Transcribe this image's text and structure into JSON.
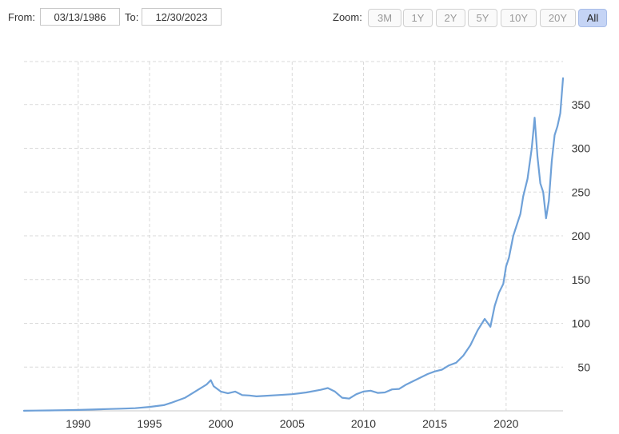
{
  "range": {
    "from_label": "From:",
    "from_value": "03/13/1986",
    "to_label": "To:",
    "to_value": "12/30/2023"
  },
  "zoom": {
    "label": "Zoom:",
    "buttons": [
      {
        "label": "3M",
        "active": false
      },
      {
        "label": "1Y",
        "active": false
      },
      {
        "label": "2Y",
        "active": false
      },
      {
        "label": "5Y",
        "active": false
      },
      {
        "label": "10Y",
        "active": false
      },
      {
        "label": "20Y",
        "active": false
      },
      {
        "label": "All",
        "active": true
      }
    ]
  },
  "colors": {
    "line": "#6fa1d8",
    "grid": "#d9d9d9",
    "zoom_active": "#c5d4f5"
  },
  "chart_data": {
    "type": "line",
    "title": "",
    "xlabel": "",
    "ylabel": "",
    "x_ticks": [
      "1990",
      "1995",
      "2000",
      "2005",
      "2010",
      "2015",
      "2020"
    ],
    "y_ticks": [
      50,
      100,
      150,
      200,
      250,
      300,
      350
    ],
    "xlim": [
      1986.2,
      2023.99
    ],
    "ylim": [
      0,
      385
    ],
    "y_axis_side": "right",
    "grid": true,
    "grid_style": "dashed",
    "series": [
      {
        "x": [
          1986.2,
          1987.0,
          1988.0,
          1989.0,
          1990.0,
          1991.0,
          1992.0,
          1993.0,
          1994.0,
          1995.0,
          1996.0,
          1996.5,
          1997.0,
          1997.5,
          1998.0,
          1998.5,
          1999.0,
          1999.3,
          1999.5,
          2000.0,
          2000.5,
          2001.0,
          2001.5,
          2002.0,
          2002.5,
          2003.0,
          2004.0,
          2005.0,
          2005.5,
          2006.0,
          2007.0,
          2007.5,
          2008.0,
          2008.5,
          2009.0,
          2009.5,
          2010.0,
          2010.5,
          2011.0,
          2011.5,
          2012.0,
          2012.5,
          2013.0,
          2013.5,
          2014.0,
          2014.5,
          2015.0,
          2015.5,
          2016.0,
          2016.5,
          2017.0,
          2017.5,
          2018.0,
          2018.5,
          2018.9,
          2019.2,
          2019.5,
          2019.8,
          2020.0,
          2020.2,
          2020.5,
          2020.8,
          2021.0,
          2021.2,
          2021.5,
          2021.8,
          2022.0,
          2022.2,
          2022.4,
          2022.6,
          2022.8,
          2023.0,
          2023.2,
          2023.4,
          2023.6,
          2023.8,
          2023.99
        ],
        "y": [
          0.1,
          0.3,
          0.5,
          0.7,
          1.0,
          1.5,
          2.0,
          2.5,
          3.0,
          4.5,
          6.5,
          9.0,
          12.0,
          15.0,
          20.0,
          25.0,
          30.0,
          35.0,
          28.0,
          22.0,
          20.0,
          22.0,
          18.0,
          17.5,
          16.5,
          17.0,
          18.0,
          19.0,
          20.0,
          21.0,
          24.0,
          26.0,
          22.0,
          15.0,
          14.0,
          19.0,
          22.0,
          23.0,
          20.5,
          21.0,
          24.5,
          25.0,
          30.0,
          34.0,
          38.0,
          42.0,
          45.0,
          47.0,
          52.0,
          55.0,
          63.0,
          75.0,
          92.0,
          105.0,
          96.0,
          120.0,
          135.0,
          145.0,
          165.0,
          175.0,
          200.0,
          215.0,
          225.0,
          245.0,
          265.0,
          300.0,
          335.0,
          290.0,
          260.0,
          250.0,
          220.0,
          240.0,
          285.0,
          315.0,
          325.0,
          340.0,
          380.0
        ]
      }
    ]
  }
}
